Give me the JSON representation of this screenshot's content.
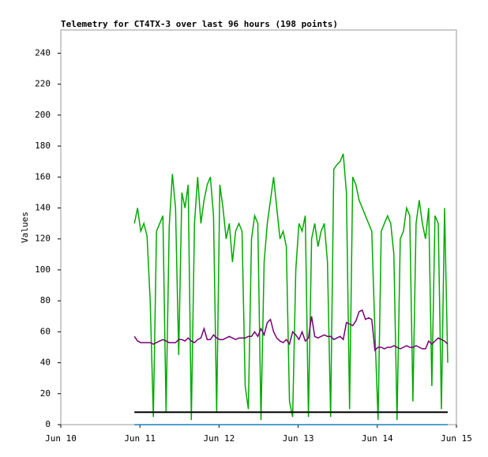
{
  "chart_data": {
    "type": "line",
    "title": "Telemetry for CT4TX-3 over last 96 hours (198 points)",
    "ylabel": "Values",
    "xlim": [
      10,
      15
    ],
    "xticks": [
      {
        "value": 10,
        "label": "Jun 10"
      },
      {
        "value": 11,
        "label": "Jun 11"
      },
      {
        "value": 12,
        "label": "Jun 12"
      },
      {
        "value": 13,
        "label": "Jun 13"
      },
      {
        "value": 14,
        "label": "Jun 14"
      },
      {
        "value": 15,
        "label": "Jun 15"
      }
    ],
    "ylim": [
      0,
      255
    ],
    "yticks": [
      0,
      20,
      40,
      60,
      80,
      100,
      120,
      140,
      160,
      180,
      200,
      220,
      240
    ],
    "x": [
      10.93,
      10.97,
      11.01,
      11.05,
      11.09,
      11.13,
      11.17,
      11.21,
      11.25,
      11.29,
      11.33,
      11.37,
      11.41,
      11.45,
      11.49,
      11.53,
      11.57,
      11.61,
      11.65,
      11.69,
      11.73,
      11.77,
      11.81,
      11.85,
      11.89,
      11.93,
      11.97,
      12.01,
      12.05,
      12.09,
      12.13,
      12.17,
      12.21,
      12.25,
      12.29,
      12.33,
      12.37,
      12.41,
      12.45,
      12.49,
      12.53,
      12.57,
      12.61,
      12.65,
      12.69,
      12.73,
      12.77,
      12.81,
      12.85,
      12.89,
      12.93,
      12.97,
      13.01,
      13.05,
      13.09,
      13.13,
      13.17,
      13.21,
      13.25,
      13.29,
      13.33,
      13.37,
      13.41,
      13.45,
      13.49,
      13.53,
      13.57,
      13.61,
      13.65,
      13.69,
      13.73,
      13.77,
      13.81,
      13.85,
      13.89,
      13.93,
      13.97,
      14.01,
      14.05,
      14.09,
      14.13,
      14.17,
      14.21,
      14.25,
      14.29,
      14.33,
      14.37,
      14.41,
      14.45,
      14.49,
      14.53,
      14.57,
      14.61,
      14.65,
      14.69,
      14.73,
      14.77,
      14.81,
      14.85,
      14.89
    ],
    "series": [
      {
        "color": "#00aa00",
        "values": [
          130,
          140,
          125,
          130,
          122,
          80,
          5,
          125,
          130,
          135,
          8,
          128,
          162,
          140,
          45,
          150,
          140,
          155,
          3,
          130,
          160,
          130,
          145,
          155,
          160,
          135,
          8,
          155,
          140,
          120,
          130,
          105,
          125,
          130,
          125,
          25,
          10,
          120,
          135,
          130,
          3,
          105,
          130,
          145,
          160,
          140,
          120,
          125,
          115,
          15,
          5,
          100,
          130,
          125,
          135,
          5,
          120,
          130,
          115,
          125,
          130,
          105,
          5,
          165,
          168,
          170,
          175,
          150,
          10,
          160,
          155,
          145,
          140,
          135,
          130,
          125,
          60,
          3,
          125,
          130,
          135,
          130,
          110,
          3,
          120,
          125,
          140,
          135,
          15,
          130,
          145,
          130,
          120,
          140,
          25,
          135,
          130,
          10,
          140,
          40
        ]
      },
      {
        "color": "#770077",
        "values": [
          57,
          54,
          53,
          53,
          53,
          53,
          52,
          53,
          54,
          55,
          54,
          53,
          53,
          53,
          55,
          55,
          54,
          56,
          54,
          53,
          55,
          56,
          62,
          55,
          55,
          58,
          56,
          55,
          55,
          56,
          57,
          56,
          55,
          56,
          56,
          56,
          57,
          57,
          60,
          57,
          62,
          58,
          66,
          68,
          60,
          56,
          54,
          53,
          55,
          52,
          60,
          58,
          55,
          60,
          54,
          56,
          70,
          57,
          56,
          57,
          58,
          57,
          57,
          55,
          56,
          57,
          55,
          66,
          65,
          64,
          67,
          73,
          74,
          68,
          69,
          68,
          48,
          50,
          50,
          49,
          50,
          50,
          51,
          50,
          49,
          50,
          51,
          50,
          50,
          51,
          50,
          49,
          49,
          54,
          52,
          54,
          56,
          55,
          54,
          52
        ]
      },
      {
        "color": "#000000",
        "values": [
          8,
          8,
          8,
          8,
          8,
          8,
          8,
          8,
          8,
          8,
          8,
          8,
          8,
          8,
          8,
          8,
          8,
          8,
          8,
          8,
          8,
          8,
          8,
          8,
          8,
          8,
          8,
          8,
          8,
          8,
          8,
          8,
          8,
          8,
          8,
          8,
          8,
          8,
          8,
          8,
          8,
          8,
          8,
          8,
          8,
          8,
          8,
          8,
          8,
          8,
          8,
          8,
          8,
          8,
          8,
          8,
          8,
          8,
          8,
          8,
          8,
          8,
          8,
          8,
          8,
          8,
          8,
          8,
          8,
          8,
          8,
          8,
          8,
          8,
          8,
          8,
          8,
          8,
          8,
          8,
          8,
          8,
          8,
          8,
          8,
          8,
          8,
          8,
          8,
          8,
          8,
          8,
          8,
          8,
          8,
          8,
          8,
          8,
          8,
          8
        ]
      },
      {
        "color": "#1a80c0",
        "values": [
          0,
          0,
          0,
          0,
          0,
          0,
          0,
          0,
          0,
          0,
          0,
          0,
          0,
          0,
          0,
          0,
          0,
          0,
          0,
          0,
          0,
          0,
          0,
          0,
          0,
          0,
          0,
          0,
          0,
          0,
          0,
          0,
          0,
          0,
          0,
          0,
          0,
          0,
          0,
          0,
          0,
          0,
          0,
          0,
          0,
          0,
          0,
          0,
          0,
          0,
          0,
          0,
          0,
          0,
          0,
          0,
          0,
          0,
          0,
          0,
          0,
          0,
          0,
          0,
          0,
          0,
          0,
          0,
          0,
          0,
          0,
          0,
          0,
          0,
          0,
          0,
          0,
          0,
          0,
          0,
          0,
          0,
          0,
          0,
          0,
          0,
          0,
          0,
          0,
          0,
          0,
          0,
          0,
          0,
          0,
          0,
          0,
          0,
          0,
          0
        ]
      }
    ]
  }
}
